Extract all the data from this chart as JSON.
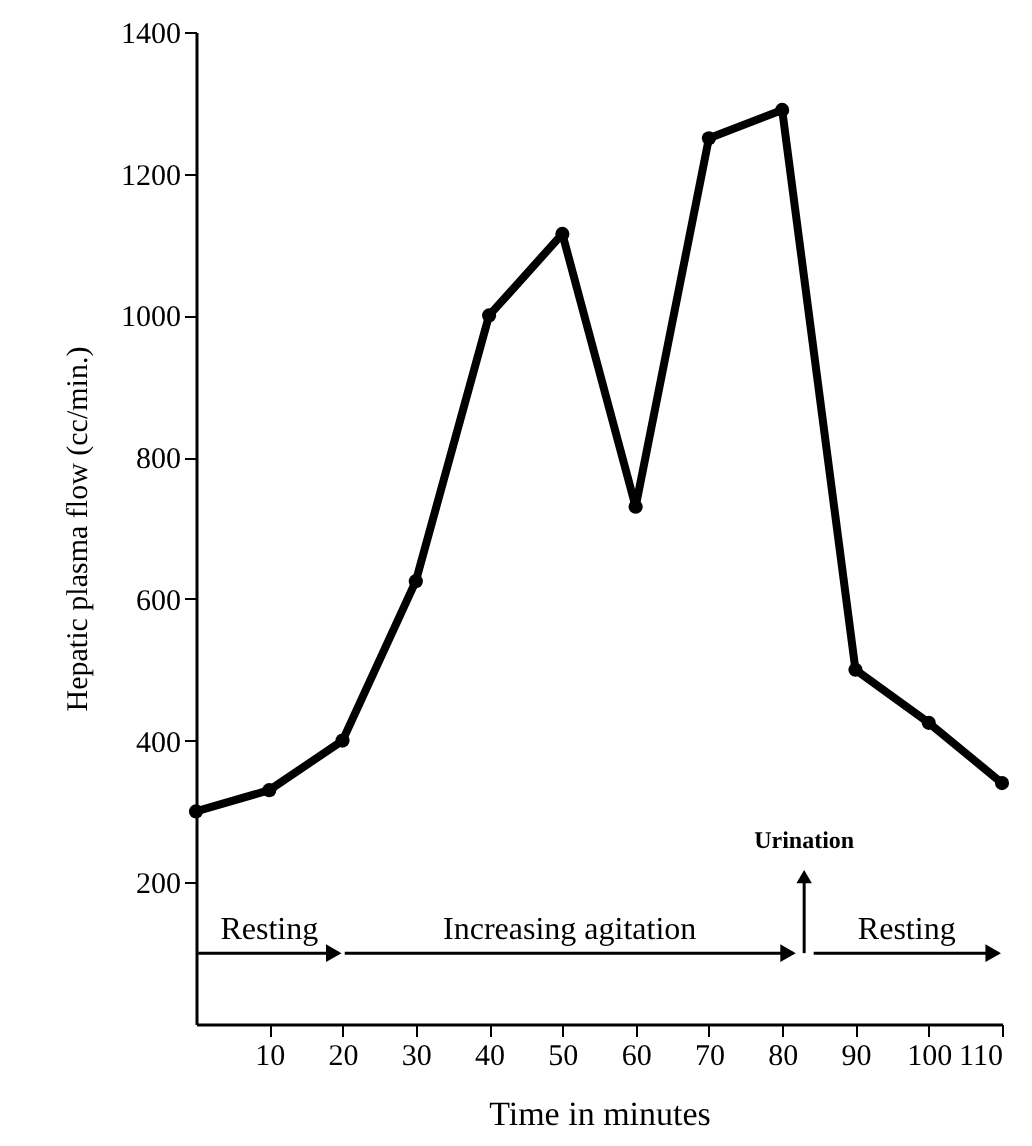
{
  "chart_data": {
    "type": "line",
    "xlabel": "Time in minutes",
    "ylabel": "Hepatic plasma flow (cc/min.)",
    "x": [
      0,
      10,
      20,
      30,
      40,
      50,
      60,
      70,
      80,
      90,
      100,
      110
    ],
    "series": [
      {
        "color": "#000000",
        "values": [
          300,
          330,
          400,
          625,
          1000,
          1115,
          730,
          1250,
          1290,
          500,
          425,
          340
        ]
      }
    ],
    "xlim": [
      0,
      110
    ],
    "xticks": [
      10,
      20,
      30,
      40,
      50,
      60,
      70,
      80,
      90,
      100,
      110
    ],
    "ylim": [
      0,
      1400
    ],
    "yticks": [
      200,
      400,
      600,
      800,
      1000,
      1200,
      1400
    ],
    "marker": "circle",
    "line_style": "solid",
    "grid": false,
    "annotations": [
      "Resting",
      "Increasing agitation",
      "Urination",
      "Resting"
    ]
  }
}
